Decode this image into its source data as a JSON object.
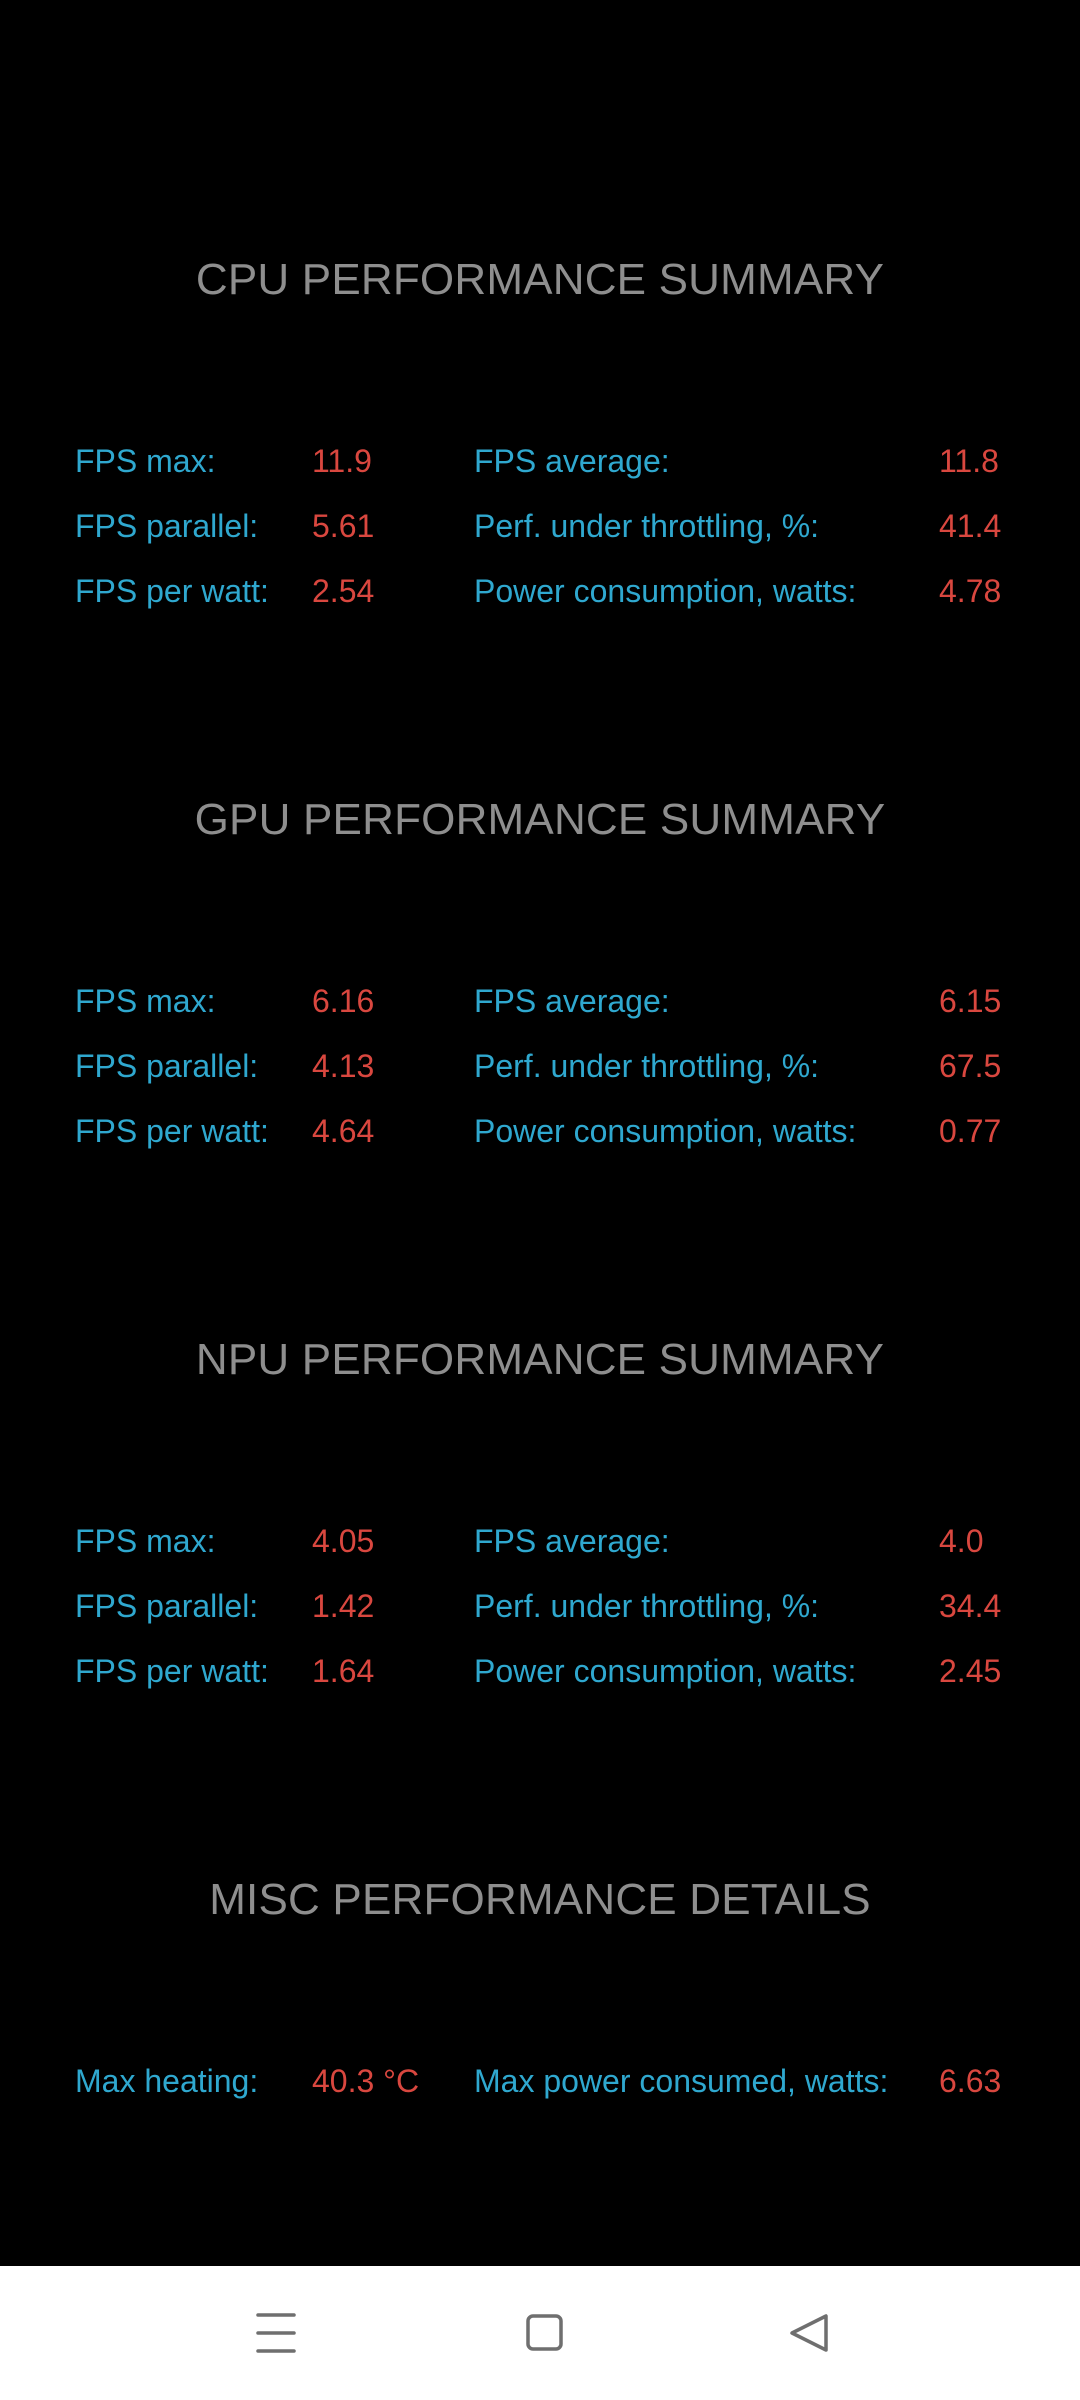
{
  "sections": [
    {
      "title": "CPU PERFORMANCE SUMMARY",
      "rows": [
        {
          "l1": "FPS max:",
          "v1": "11.9",
          "l2": "FPS average:",
          "v2": "11.8"
        },
        {
          "l1": "FPS parallel:",
          "v1": "5.61",
          "l2": "Perf. under throttling, %:",
          "v2": "41.4"
        },
        {
          "l1": "FPS per watt:",
          "v1": "2.54",
          "l2": "Power consumption, watts:",
          "v2": "4.78"
        }
      ]
    },
    {
      "title": "GPU PERFORMANCE SUMMARY",
      "rows": [
        {
          "l1": "FPS max:",
          "v1": "6.16",
          "l2": "FPS average:",
          "v2": "6.15"
        },
        {
          "l1": "FPS parallel:",
          "v1": "4.13",
          "l2": "Perf. under throttling, %:",
          "v2": "67.5"
        },
        {
          "l1": "FPS per watt:",
          "v1": "4.64",
          "l2": "Power consumption, watts:",
          "v2": "0.77"
        }
      ]
    },
    {
      "title": "NPU PERFORMANCE SUMMARY",
      "rows": [
        {
          "l1": "FPS max:",
          "v1": "4.05",
          "l2": "FPS average:",
          "v2": "4.0"
        },
        {
          "l1": "FPS parallel:",
          "v1": "1.42",
          "l2": "Perf. under throttling, %:",
          "v2": "34.4"
        },
        {
          "l1": "FPS per watt:",
          "v1": "1.64",
          "l2": "Power consumption, watts:",
          "v2": "2.45"
        }
      ]
    },
    {
      "title": "MISC PERFORMANCE DETAILS",
      "rows": [
        {
          "l1": "Max heating:",
          "v1": "40.3 °C",
          "l2": "Max power consumed, watts:",
          "v2": "6.63"
        }
      ]
    }
  ],
  "navbar": {
    "icons": [
      "menu-icon",
      "home-square-icon",
      "back-triangle-icon"
    ]
  },
  "colors": {
    "background": "#000000",
    "title": "#8e8e8e",
    "label": "#2fa8cf",
    "value": "#d9473f",
    "navbar": "#ffffff",
    "nav_icon": "#6f6f6f"
  }
}
